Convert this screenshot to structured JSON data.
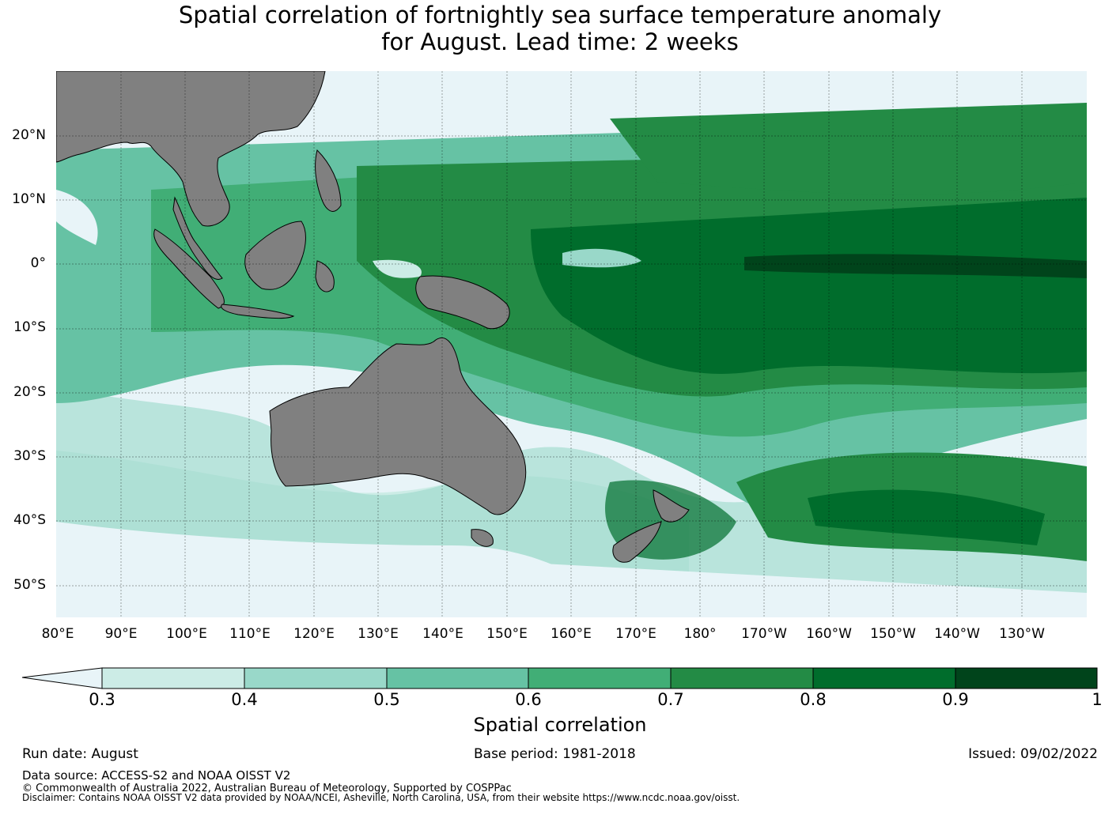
{
  "title_line1": "Spatial correlation of fortnightly sea surface temperature anomaly",
  "title_line2": "for August. Lead time: 2 weeks",
  "map": {
    "lon_labels": [
      "80°E",
      "90°E",
      "100°E",
      "110°E",
      "120°E",
      "130°E",
      "140°E",
      "150°E",
      "160°E",
      "170°E",
      "180°",
      "170°W",
      "160°W",
      "150°W",
      "140°W",
      "130°W"
    ],
    "lat_labels": [
      "20°N",
      "10°N",
      "0°",
      "10°S",
      "20°S",
      "30°S",
      "40°S",
      "50°S"
    ],
    "land_color": "#808080",
    "ocean_low_color": "#e8f4f8"
  },
  "colorbar": {
    "label": "Spatial correlation",
    "ticks": [
      "0.3",
      "0.4",
      "0.5",
      "0.6",
      "0.7",
      "0.8",
      "0.9",
      "1"
    ],
    "colors": [
      "#ccece6",
      "#99d8c9",
      "#66c2a4",
      "#41ae76",
      "#238b45",
      "#006d2c",
      "#00441b"
    ],
    "under_color": "#e8f4f8"
  },
  "footer": {
    "run_date": "Run date: August",
    "base_period": "Base period: 1981-2018",
    "issued": "Issued: 09/02/2022",
    "data_source": "Data source: ACCESS-S2 and NOAA OISST V2",
    "copyright": "© Commonwealth of Australia 2022, Australian Bureau of Meteorology, Supported by COSPPac",
    "disclaimer": "Disclaimer: Contains NOAA OISST V2 data provided by NOAA/NCEI, Asheville, North Carolina, USA, from their website https://www.ncdc.noaa.gov/oisst."
  }
}
